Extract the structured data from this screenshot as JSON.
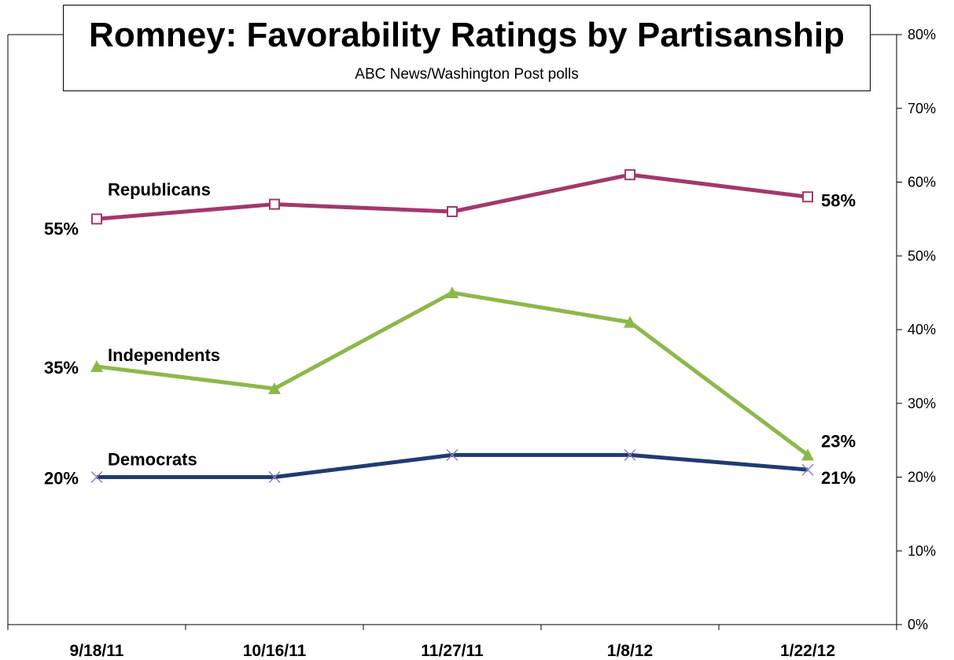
{
  "chart_data": {
    "type": "line",
    "title": "Romney: Favorability Ratings by Partisanship",
    "subtitle": "ABC News/Washington  Post polls",
    "categories": [
      "9/18/11",
      "10/16/11",
      "11/27/11",
      "1/8/12",
      "1/22/12"
    ],
    "ylim": [
      0,
      80
    ],
    "yticks": [
      "0%",
      "10%",
      "20%",
      "30%",
      "40%",
      "50%",
      "60%",
      "70%",
      "80%"
    ],
    "y_axis_side": "right",
    "grid": false,
    "series": [
      {
        "name": "Republicans",
        "values": [
          55,
          57,
          56,
          61,
          58
        ],
        "color": "#A3386C",
        "marker": "open-square",
        "start_label": "55%",
        "end_label": "58%"
      },
      {
        "name": "Independents",
        "values": [
          35,
          32,
          45,
          41,
          23
        ],
        "color": "#8CB84A",
        "marker": "triangle",
        "start_label": "35%",
        "end_label": "23%"
      },
      {
        "name": "Democrats",
        "values": [
          20,
          20,
          23,
          23,
          21
        ],
        "color": "#1F3B73",
        "marker": "x",
        "start_label": "20%",
        "end_label": "21%"
      }
    ]
  }
}
